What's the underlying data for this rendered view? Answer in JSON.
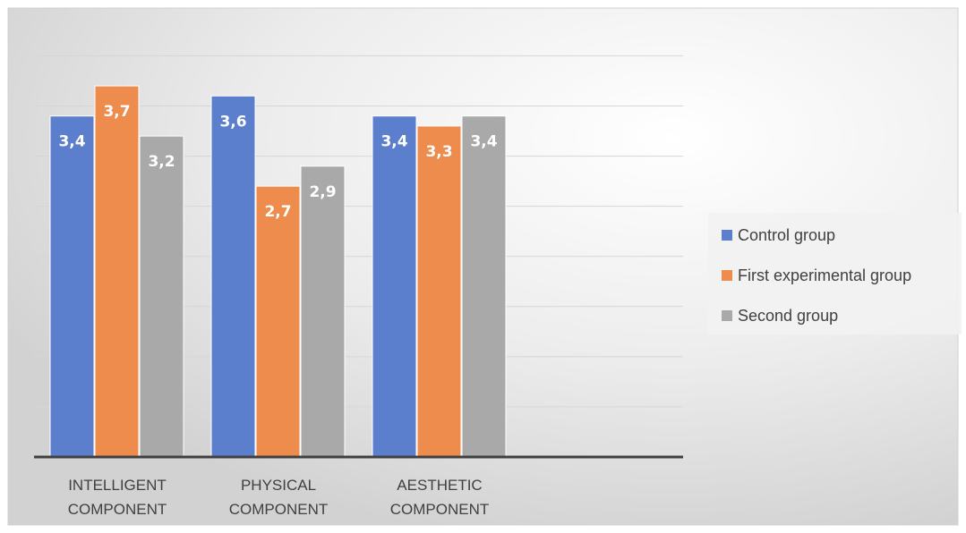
{
  "chart_data": {
    "type": "bar",
    "title": "",
    "xlabel": "",
    "ylabel": "",
    "ylim": [
      0,
      4.2
    ],
    "grid": true,
    "legend_position": "right",
    "categories": [
      [
        "INTELLIGENT",
        "COMPONENT"
      ],
      [
        "PHYSICAL",
        "COMPONENT"
      ],
      [
        "AESTHETIC",
        "COMPONENT"
      ]
    ],
    "series": [
      {
        "name": "Control group",
        "color": "#5B7FCC",
        "values": [
          3.4,
          3.6,
          3.4
        ],
        "labels": [
          "3,4",
          "3,6",
          "3,4"
        ]
      },
      {
        "name": "First experimental group",
        "color": "#ED8C4C",
        "values": [
          3.7,
          2.7,
          3.3
        ],
        "labels": [
          "3,7",
          "2,7",
          "3,3"
        ]
      },
      {
        "name": "Second group",
        "color": "#A9A9A9",
        "values": [
          3.2,
          2.9,
          3.4
        ],
        "labels": [
          "3,2",
          "2,9",
          "3,4"
        ]
      }
    ]
  }
}
